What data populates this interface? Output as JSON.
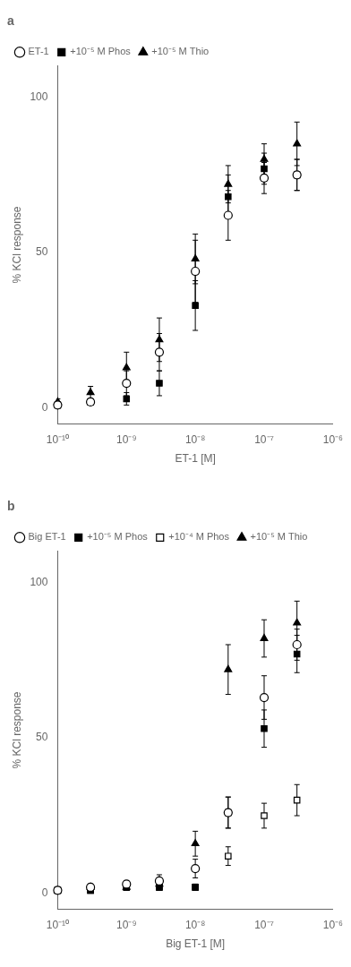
{
  "chart_data": [
    {
      "type": "scatter",
      "title": "a",
      "x_label": "ET-1 [M]",
      "y_label": "% KCl response",
      "log": "x",
      "grid": false,
      "legend": "upper left",
      "xlim": [
        1e-10,
        1e-06
      ],
      "xticks": [
        {
          "value": 1e-10,
          "label": "10⁻¹⁰"
        },
        {
          "value": 1e-09,
          "label": "10⁻⁹"
        },
        {
          "value": 1e-08,
          "label": "10⁻⁸"
        },
        {
          "value": 1e-07,
          "label": "10⁻⁷"
        },
        {
          "value": 1e-06,
          "label": "10⁻⁶"
        }
      ],
      "ylim": [
        -5,
        110
      ],
      "yticks": [
        0,
        50,
        100
      ],
      "x": [
        1e-10,
        3e-10,
        1e-09,
        3e-09,
        1e-08,
        3e-08,
        1e-07,
        3e-07
      ],
      "series": [
        {
          "name": "ET-1",
          "color": "black",
          "marker": "open circle",
          "values": [
            1,
            2,
            8,
            18,
            44,
            62,
            74,
            75
          ],
          "errors": [
            1,
            1,
            4,
            6,
            10,
            8,
            5,
            5
          ]
        },
        {
          "name": "+10⁻⁵ M Phos",
          "color": "black",
          "marker": "filled square",
          "values": [
            1,
            2,
            3,
            8,
            33,
            68,
            77,
            75
          ],
          "errors": [
            1,
            1,
            2,
            4,
            8,
            7,
            5,
            5
          ]
        },
        {
          "name": "+10⁻⁵ M Thio",
          "color": "black",
          "marker": "filled triangle",
          "values": [
            2,
            5,
            13,
            22,
            48,
            72,
            80,
            85
          ],
          "errors": [
            1,
            2,
            5,
            7,
            8,
            6,
            5,
            7
          ]
        }
      ]
    },
    {
      "type": "scatter",
      "title": "b",
      "x_label": "Big ET-1 [M]",
      "y_label": "% KCl response",
      "log": "x",
      "grid": false,
      "legend": "upper left",
      "xlim": [
        1e-10,
        1e-06
      ],
      "xticks": [
        {
          "value": 1e-10,
          "label": "10⁻¹⁰"
        },
        {
          "value": 1e-09,
          "label": "10⁻⁹"
        },
        {
          "value": 1e-08,
          "label": "10⁻⁸"
        },
        {
          "value": 1e-07,
          "label": "10⁻⁷"
        },
        {
          "value": 1e-06,
          "label": "10⁻⁶"
        }
      ],
      "ylim": [
        -5,
        110
      ],
      "yticks": [
        0,
        50,
        100
      ],
      "x": [
        1e-10,
        3e-10,
        1e-09,
        3e-09,
        1e-08,
        3e-08,
        1e-07,
        3e-07
      ],
      "series": [
        {
          "name": "Big ET-1",
          "color": "black",
          "marker": "open circle",
          "values": [
            1,
            2,
            3,
            4,
            8,
            26,
            63,
            80
          ],
          "errors": [
            0.5,
            1,
            1,
            2,
            3,
            5,
            7,
            5
          ]
        },
        {
          "name": "+10⁻⁵ M Phos",
          "color": "black",
          "marker": "filled square",
          "values": [
            1,
            1,
            2,
            2,
            2,
            26,
            53,
            77
          ],
          "errors": [
            0.5,
            0.5,
            1,
            1,
            1,
            5,
            6,
            6
          ]
        },
        {
          "name": "+10⁻⁴ M Phos",
          "color": "black",
          "marker": "open square",
          "values": [
            1,
            1,
            2,
            2,
            2,
            12,
            25,
            30
          ],
          "errors": [
            0.5,
            0.5,
            1,
            1,
            1,
            3,
            4,
            5
          ]
        },
        {
          "name": "+10⁻⁵ M Thio",
          "color": "black",
          "marker": "filled triangle",
          "values": [
            1,
            2,
            2,
            3,
            16,
            72,
            82,
            87
          ],
          "errors": [
            0.5,
            1,
            1,
            1,
            4,
            8,
            6,
            7
          ]
        }
      ]
    }
  ]
}
